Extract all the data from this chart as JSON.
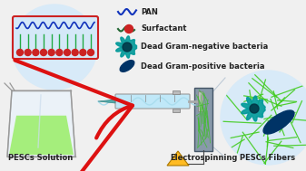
{
  "bg_color": "#f0f0f0",
  "labels": [
    "PESCs Solution",
    "Electrospinning",
    "PESCs Fibers"
  ],
  "legend_labels": [
    "PAN",
    "Surfactant",
    "Dead Gram-negative bacteria",
    "Dead Gram-positive bacteria"
  ],
  "liquid_color": "#99ee66",
  "circle_bg": "#d8eaf8",
  "fiber_color": "#44cc22",
  "arrow_color": "#dd1111",
  "text_color": "#222222",
  "beaker_edge": "#999999",
  "pan_color": "#1133bb",
  "surfactant_line": "#226633",
  "surfactant_dot": "#cc2222",
  "membrane_rect_edge": "#cc2222",
  "membrane_rect_face": "#d4e8f8",
  "membrane_surf_line": "#22aa44",
  "collector_face": "#8899aa",
  "collector_edge": "#445566",
  "hv_face": "#ffbb22",
  "hv_edge": "#aa7700",
  "gram_neg_color": "#009999",
  "gram_neg_dark": "#003344",
  "gram_pos_color": "#003366",
  "font_size": 5.5
}
